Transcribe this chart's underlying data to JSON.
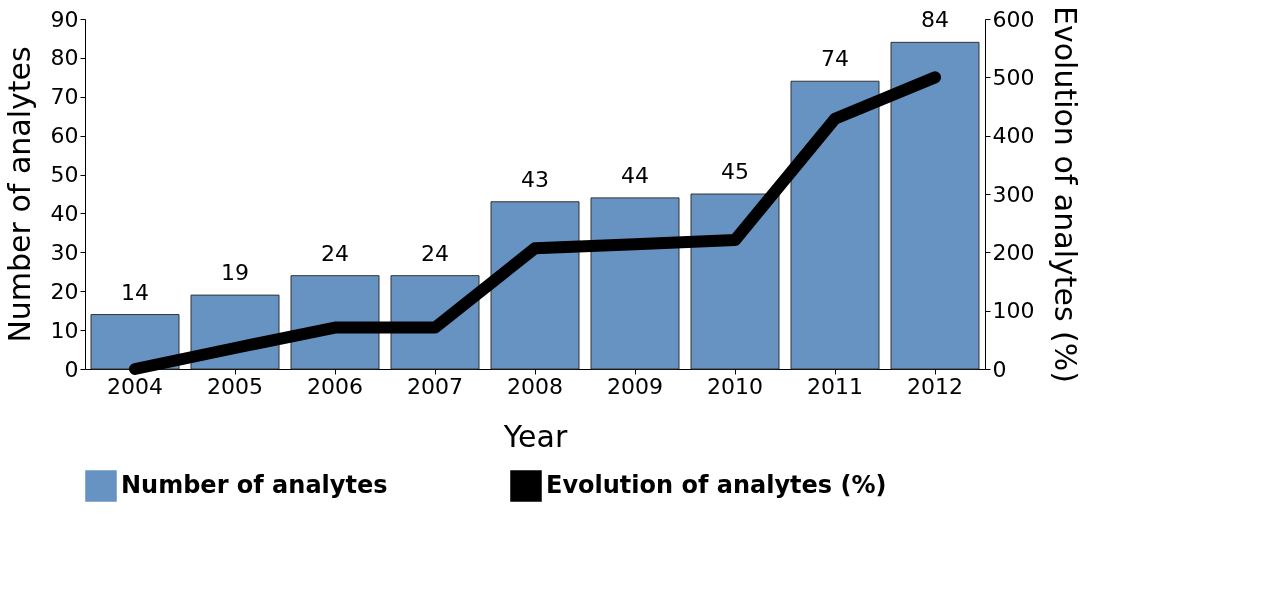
{
  "chart_data": {
    "type": "bar",
    "xlabel": "Year",
    "ylabel": "Number of analytes",
    "y2label": "Evolution of analytes (%)",
    "categories": [
      "2004",
      "2005",
      "2006",
      "2007",
      "2008",
      "2009",
      "2010",
      "2011",
      "2012"
    ],
    "series": [
      {
        "name": "Number of analytes",
        "color": "#6693c2",
        "values": [
          14,
          19,
          24,
          24,
          43,
          44,
          45,
          74,
          84
        ],
        "value_labels": [
          "14",
          "19",
          "24",
          "24",
          "43",
          "44",
          "45",
          "74",
          "84"
        ]
      },
      {
        "name": "Evolution of analytes (%)",
        "type": "line",
        "color": "#000000",
        "axis": "y2",
        "values": [
          0,
          36,
          71,
          71,
          207,
          214,
          221,
          429,
          500
        ]
      }
    ],
    "ylim": [
      0,
      90
    ],
    "yticks": [
      0,
      10,
      20,
      30,
      40,
      50,
      60,
      70,
      80,
      90
    ],
    "y2lim": [
      0,
      600
    ],
    "y2ticks": [
      0,
      100,
      200,
      300,
      400,
      500,
      600
    ],
    "grid": false,
    "legend": "bottom",
    "line_style": "solid",
    "marker": "none"
  }
}
